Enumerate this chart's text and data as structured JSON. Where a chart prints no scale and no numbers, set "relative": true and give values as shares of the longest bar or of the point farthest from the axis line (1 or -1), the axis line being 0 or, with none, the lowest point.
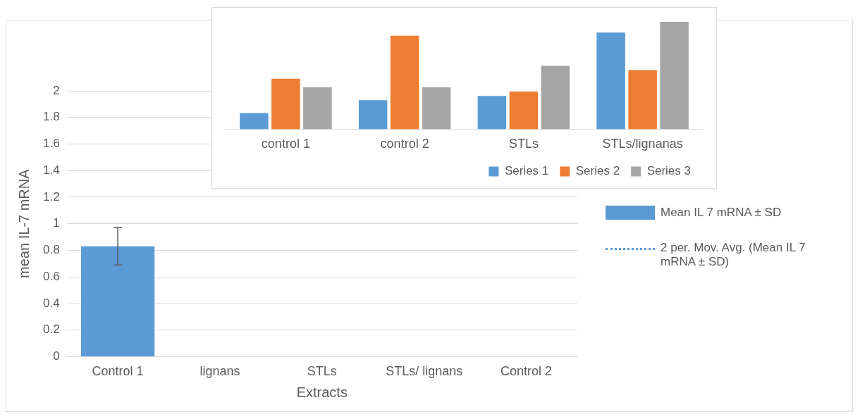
{
  "chart_data": [
    {
      "type": "bar",
      "xlabel": "Extracts",
      "ylabel": "mean IL-7 mRNA",
      "categories": [
        "Control 1",
        "lignans",
        "STLs",
        "STLs/ lignans",
        "Control 2"
      ],
      "ylim": [
        0,
        2
      ],
      "yticks": [
        0,
        0.2,
        0.4,
        0.6,
        0.8,
        1,
        1.2,
        1.4,
        1.6,
        1.8,
        2
      ],
      "grid": "y",
      "legend": "right",
      "series": [
        {
          "name": "Mean IL 7 mRNA ± SD",
          "color": "#5b9bd5",
          "values": [
            0.83,
            null,
            null,
            null,
            null
          ],
          "errors": [
            0.14,
            null,
            null,
            null,
            null
          ]
        },
        {
          "name": "2 per. Mov. Avg. (Mean IL 7 mRNA ± SD)",
          "type": "line",
          "color": "#5b9bd5",
          "line_style": "dotted",
          "values": [
            null,
            null,
            null,
            null,
            null
          ]
        }
      ]
    },
    {
      "type": "bar",
      "relative": true,
      "categories": [
        "control 1",
        "control 2",
        "STLs",
        "STLs/lignanas"
      ],
      "legend": "bottom",
      "series": [
        {
          "name": "Series 1",
          "color": "#5b9bd5",
          "values": [
            0.15,
            0.27,
            0.31,
            0.9
          ]
        },
        {
          "name": "Series 2",
          "color": "#ed7d31",
          "values": [
            0.47,
            0.87,
            0.35,
            0.55
          ]
        },
        {
          "name": "Series 3",
          "color": "#a5a5a5",
          "values": [
            0.39,
            0.39,
            0.59,
            1
          ]
        }
      ]
    }
  ]
}
